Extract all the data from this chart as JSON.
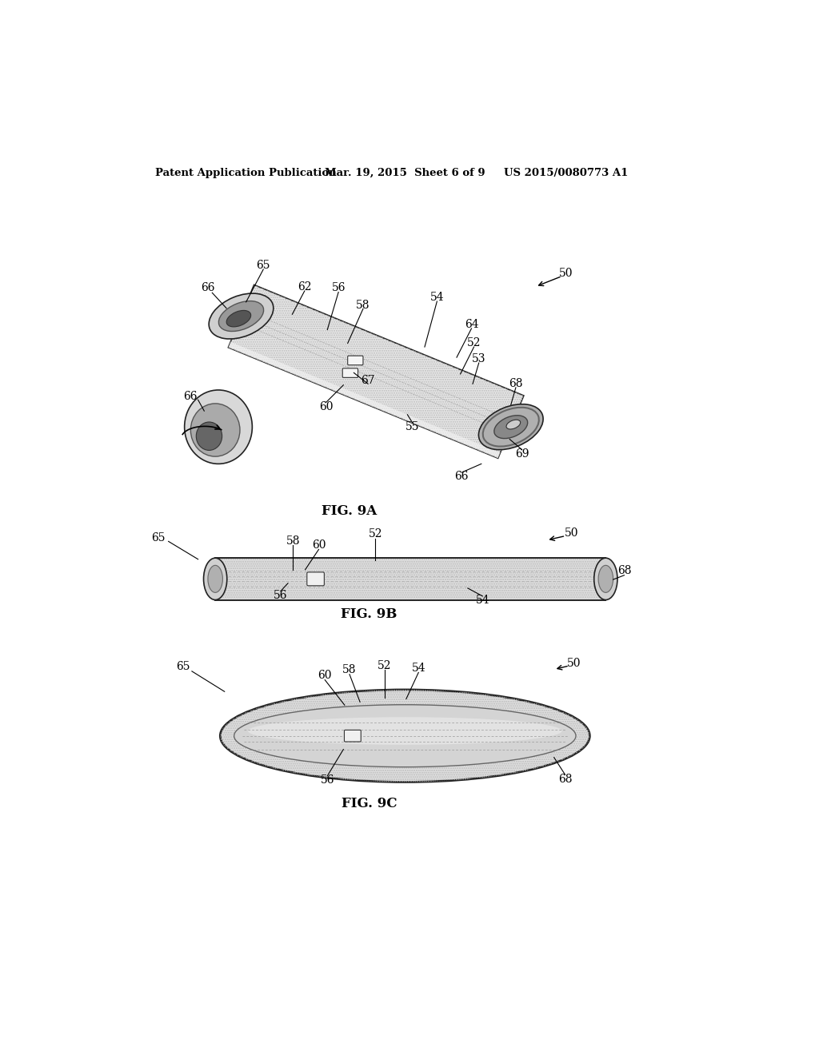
{
  "bg_color": "#ffffff",
  "header_left": "Patent Application Publication",
  "header_mid": "Mar. 19, 2015  Sheet 6 of 9",
  "header_right": "US 2015/0080773 A1",
  "fig9a_label": "FIG. 9A",
  "fig9b_label": "FIG. 9B",
  "fig9c_label": "FIG. 9C",
  "roller_fill": "#e0e0e0",
  "roller_edge": "#222222",
  "end_fill_dark": "#888888",
  "end_fill_mid": "#bbbbbb",
  "end_fill_light": "#cccccc"
}
